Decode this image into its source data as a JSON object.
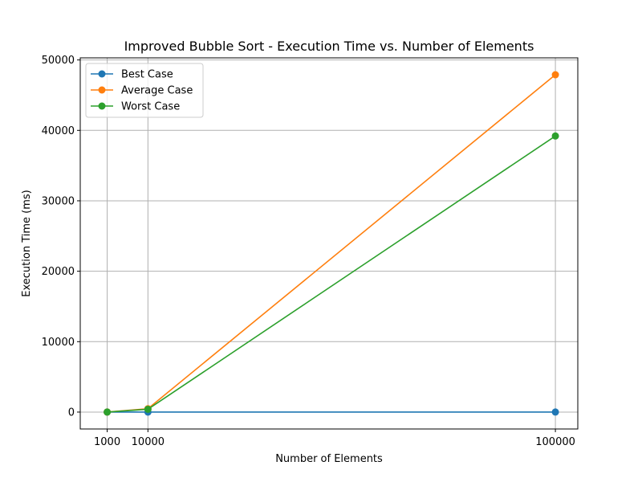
{
  "chart_data": {
    "type": "line",
    "title": "Improved Bubble Sort - Execution Time vs. Number of Elements",
    "xlabel": "Number of Elements",
    "ylabel": "Execution Time (ms)",
    "x": [
      1000,
      10000,
      100000
    ],
    "x_ticks": [
      1000,
      10000,
      100000
    ],
    "x_tick_labels": [
      "1000",
      "10000",
      "100000"
    ],
    "y_ticks": [
      0,
      10000,
      20000,
      30000,
      40000,
      50000
    ],
    "y_tick_labels": [
      "0",
      "10000",
      "20000",
      "30000",
      "40000",
      "50000"
    ],
    "xlim": [
      -4950,
      104950
    ],
    "ylim": [
      -2400,
      50300
    ],
    "grid": true,
    "legend_position": "top-left",
    "series": [
      {
        "name": "Best Case",
        "color": "#1f77b4",
        "values": [
          0,
          1,
          5
        ]
      },
      {
        "name": "Average Case",
        "color": "#ff7f0e",
        "values": [
          5,
          480,
          47900
        ]
      },
      {
        "name": "Worst Case",
        "color": "#2ca02c",
        "values": [
          5,
          400,
          39200
        ]
      }
    ]
  }
}
